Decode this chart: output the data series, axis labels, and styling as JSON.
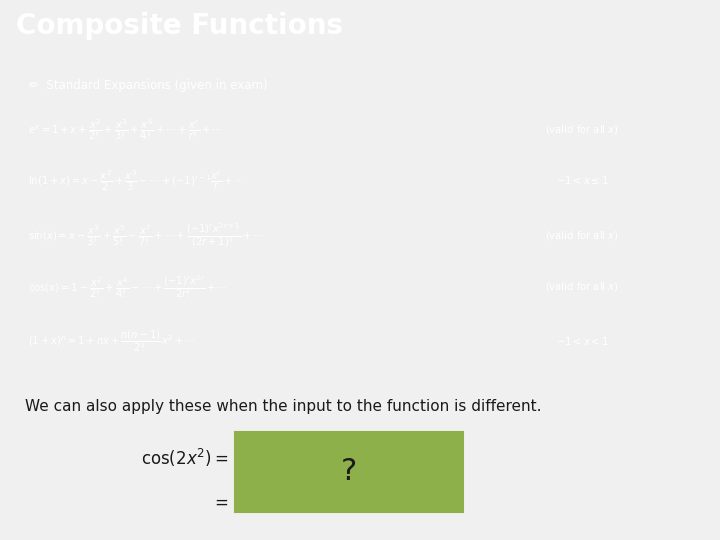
{
  "title": "Composite Functions",
  "title_bg": "#1a1a1a",
  "title_color": "#ffffff",
  "title_fontsize": 20,
  "accent_color": "#8db04a",
  "dark_box_bg": "#333333",
  "dark_box_color": "#ffffff",
  "body_bg": "#f0f0f0",
  "body_text_color": "#1a1a1a",
  "green_box_color": "#8db04a",
  "body_text": "We can also apply these when the input to the function is different.",
  "body_fontsize": 11,
  "question_mark": "?",
  "formulas": [
    "$e^x = 1 + x + \\dfrac{x^2}{2!} + \\dfrac{x^3}{3!} + \\dfrac{x^4}{4!} + \\cdots + \\dfrac{x^r}{r!} + \\cdots$",
    "$\\ln(1+x) = x - \\dfrac{x^2}{2} + \\dfrac{x^3}{3} - \\cdots + (-1)^{r-1}\\dfrac{x^r}{r} + \\cdots$",
    "$\\sin(x) = x - \\dfrac{x^3}{3!} + \\dfrac{x^5}{5!} - \\dfrac{x^7}{7!} + \\cdots + \\dfrac{(-1)^r x^{2r+1}}{(2r+1)!} + \\cdots$",
    "$\\cos(x) = 1 - \\dfrac{x^2}{2!} + \\dfrac{x^4}{4!} - \\cdots + \\dfrac{(-1)^r x^{2r}}{2r!} + \\cdots$",
    "$(1+x)^n = 1 + nx + \\dfrac{n(n-1)}{2!}x^2 + \\cdots$"
  ],
  "validity": [
    "(valid for all $x$)",
    "$-1 < x \\leq 1$",
    "(valid for all $x$)",
    "(valid for all $x$)",
    "$-1 < x < 1$"
  ],
  "header_text": "✏  Standard Expansions (given in exam)"
}
